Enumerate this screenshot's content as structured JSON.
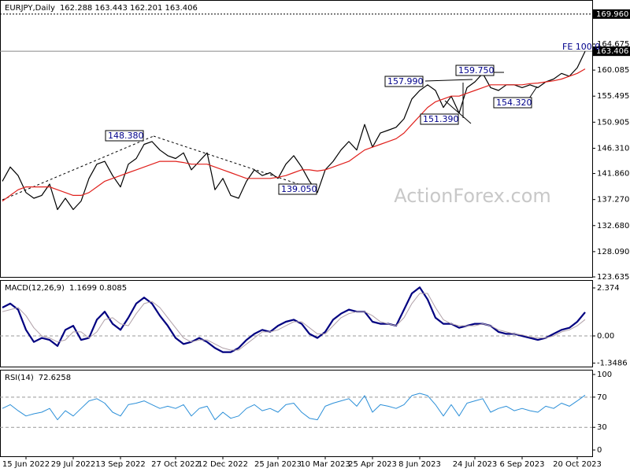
{
  "watermark": "ActionForex.com",
  "chart_data": [
    {
      "type": "line",
      "title": "EURJPY,Daily",
      "subtitle": "162.288 163.443 162.201 163.406",
      "categories": [
        null,
        null,
        null,
        "15 Jun 2022",
        null,
        null,
        null,
        null,
        null,
        "29 Jul 2022",
        null,
        null,
        null,
        null,
        null,
        "13 Sep 2022",
        null,
        null,
        null,
        null,
        null,
        null,
        "27 Oct 2022",
        null,
        null,
        null,
        null,
        null,
        "12 Dec 2022",
        null,
        null,
        null,
        null,
        null,
        null,
        "25 Jan 2023",
        null,
        null,
        null,
        null,
        null,
        "10 Mar 2023",
        null,
        null,
        null,
        null,
        null,
        "25 Apr 2023",
        null,
        null,
        null,
        null,
        null,
        "8 Jun 2023",
        null,
        null,
        null,
        null,
        null,
        null,
        "24 Jul 2023",
        null,
        null,
        null,
        null,
        null,
        "6 Sep 2023",
        null,
        null,
        null,
        null,
        null,
        null,
        "20 Oct 2023",
        null
      ],
      "series": [
        {
          "color": "#000000",
          "values": [
            140.5,
            143.0,
            141.5,
            138.5,
            137.5,
            138.0,
            140.0,
            135.5,
            137.5,
            135.5,
            137.0,
            141.0,
            143.5,
            144.0,
            141.5,
            139.5,
            143.5,
            144.5,
            147.0,
            147.5,
            146.0,
            145.0,
            144.5,
            145.5,
            142.5,
            144.0,
            145.5,
            139.0,
            141.0,
            138.0,
            137.5,
            140.5,
            142.5,
            141.5,
            142.0,
            141.0,
            143.5,
            145.0,
            143.0,
            140.5,
            138.5,
            142.5,
            144.0,
            146.0,
            147.5,
            146.0,
            150.5,
            146.5,
            149.0,
            149.5,
            150.0,
            151.5,
            155.0,
            156.5,
            157.5,
            156.5,
            153.5,
            155.5,
            152.5,
            157.0,
            158.0,
            159.5,
            157.0,
            156.5,
            157.5,
            157.5,
            157.0,
            157.5,
            157.0,
            158.0,
            158.5,
            159.5,
            159.0,
            160.5,
            163.406
          ]
        },
        {
          "color": "#e0201c",
          "values": [
            137.0,
            138.0,
            139.0,
            139.5,
            139.5,
            139.5,
            139.5,
            139.0,
            138.5,
            138.0,
            138.0,
            138.5,
            139.5,
            140.5,
            141.0,
            141.5,
            142.0,
            142.5,
            143.0,
            143.5,
            144.0,
            144.0,
            144.0,
            143.8,
            143.5,
            143.5,
            143.5,
            143.0,
            142.5,
            142.0,
            141.5,
            141.0,
            141.0,
            141.0,
            141.0,
            141.2,
            141.5,
            142.0,
            142.5,
            142.5,
            142.3,
            142.5,
            143.0,
            143.5,
            144.0,
            145.0,
            146.0,
            146.5,
            147.0,
            147.5,
            148.0,
            149.0,
            150.5,
            152.0,
            153.5,
            154.5,
            155.0,
            155.5,
            155.5,
            156.0,
            156.5,
            157.0,
            157.5,
            157.5,
            157.5,
            157.5,
            157.5,
            157.7,
            157.8,
            158.0,
            158.2,
            158.5,
            159.0,
            159.5,
            160.3
          ]
        }
      ],
      "ylim": [
        123.635,
        172.44
      ],
      "yticks": [
        123.635,
        {
          "value": 128.09,
          "label": "128.090"
        },
        {
          "value": 132.68,
          "label": "132.680"
        },
        {
          "value": 137.27,
          "label": "137.270"
        },
        {
          "value": 141.86,
          "label": "141.860"
        },
        {
          "value": 146.31,
          "label": "146.310"
        },
        150.905,
        155.495,
        160.085,
        164.675
      ],
      "hlines": [
        {
          "value": 169.96,
          "label": "169.960",
          "style": "dotted"
        },
        {
          "value": 163.406,
          "label": "163.406",
          "style": "solid"
        }
      ],
      "annotations": [
        "148.380",
        "139.050",
        "157.990",
        "159.750",
        "151.390",
        "154.320",
        "FE 100.0"
      ]
    },
    {
      "type": "line",
      "title": "MACD(12,26,9)",
      "subtitle": "1.1699 0.8085",
      "series": [
        {
          "color": "#000080",
          "width": 2.2,
          "values": [
            1.4,
            1.6,
            1.3,
            0.3,
            -0.3,
            -0.1,
            -0.2,
            -0.5,
            0.3,
            0.5,
            -0.2,
            -0.1,
            0.8,
            1.2,
            0.6,
            0.3,
            0.9,
            1.6,
            1.9,
            1.6,
            1.0,
            0.5,
            -0.1,
            -0.4,
            -0.3,
            -0.1,
            -0.3,
            -0.6,
            -0.8,
            -0.8,
            -0.6,
            -0.2,
            0.1,
            0.3,
            0.2,
            0.5,
            0.7,
            0.8,
            0.6,
            0.1,
            -0.1,
            0.2,
            0.8,
            1.1,
            1.3,
            1.2,
            1.2,
            0.7,
            0.6,
            0.6,
            0.5,
            1.3,
            2.1,
            2.4,
            1.8,
            0.9,
            0.6,
            0.6,
            0.4,
            0.5,
            0.6,
            0.6,
            0.5,
            0.2,
            0.1,
            0.1,
            0.0,
            -0.1,
            -0.2,
            -0.1,
            0.1,
            0.3,
            0.4,
            0.7,
            1.1699
          ]
        },
        {
          "color": "#b0a0a8",
          "width": 1,
          "values": [
            1.2,
            1.3,
            1.4,
            1.0,
            0.4,
            0.0,
            -0.1,
            -0.3,
            -0.2,
            0.2,
            0.2,
            -0.1,
            0.2,
            0.8,
            0.9,
            0.6,
            0.5,
            1.1,
            1.6,
            1.7,
            1.4,
            0.9,
            0.4,
            -0.1,
            -0.3,
            -0.2,
            -0.2,
            -0.4,
            -0.6,
            -0.7,
            -0.7,
            -0.4,
            -0.1,
            0.2,
            0.2,
            0.3,
            0.5,
            0.7,
            0.7,
            0.4,
            0.1,
            0.1,
            0.5,
            0.9,
            1.1,
            1.2,
            1.2,
            1.0,
            0.7,
            0.6,
            0.5,
            0.9,
            1.6,
            2.1,
            2.1,
            1.4,
            0.8,
            0.6,
            0.5,
            0.5,
            0.5,
            0.6,
            0.5,
            0.3,
            0.2,
            0.1,
            0.05,
            -0.05,
            -0.1,
            -0.1,
            0.0,
            0.2,
            0.3,
            0.5,
            0.8085
          ]
        }
      ],
      "ylim": [
        -1.518,
        2.763
      ],
      "yticks": [
        2.374,
        {
          "value": 0,
          "label": "0.00"
        },
        -1.3486
      ],
      "levels": [
        0
      ]
    },
    {
      "type": "line",
      "title": "RSI(14)",
      "subtitle": "72.6258",
      "series": [
        {
          "color": "#2b8fd8",
          "width": 1,
          "values": [
            55,
            60,
            52,
            45,
            48,
            50,
            55,
            40,
            52,
            45,
            55,
            65,
            68,
            62,
            50,
            45,
            60,
            62,
            65,
            60,
            55,
            58,
            55,
            60,
            45,
            55,
            58,
            40,
            50,
            42,
            45,
            55,
            60,
            52,
            55,
            50,
            60,
            62,
            50,
            42,
            40,
            58,
            62,
            65,
            68,
            58,
            72,
            50,
            60,
            58,
            55,
            60,
            72,
            75,
            72,
            60,
            45,
            60,
            45,
            62,
            65,
            68,
            50,
            55,
            58,
            52,
            55,
            52,
            50,
            58,
            55,
            62,
            58,
            65,
            72.6258
          ]
        }
      ],
      "ylim": [
        -8.3,
        106.3
      ],
      "yticks": [
        100,
        70,
        30,
        0
      ],
      "levels": [
        70,
        30
      ]
    }
  ]
}
